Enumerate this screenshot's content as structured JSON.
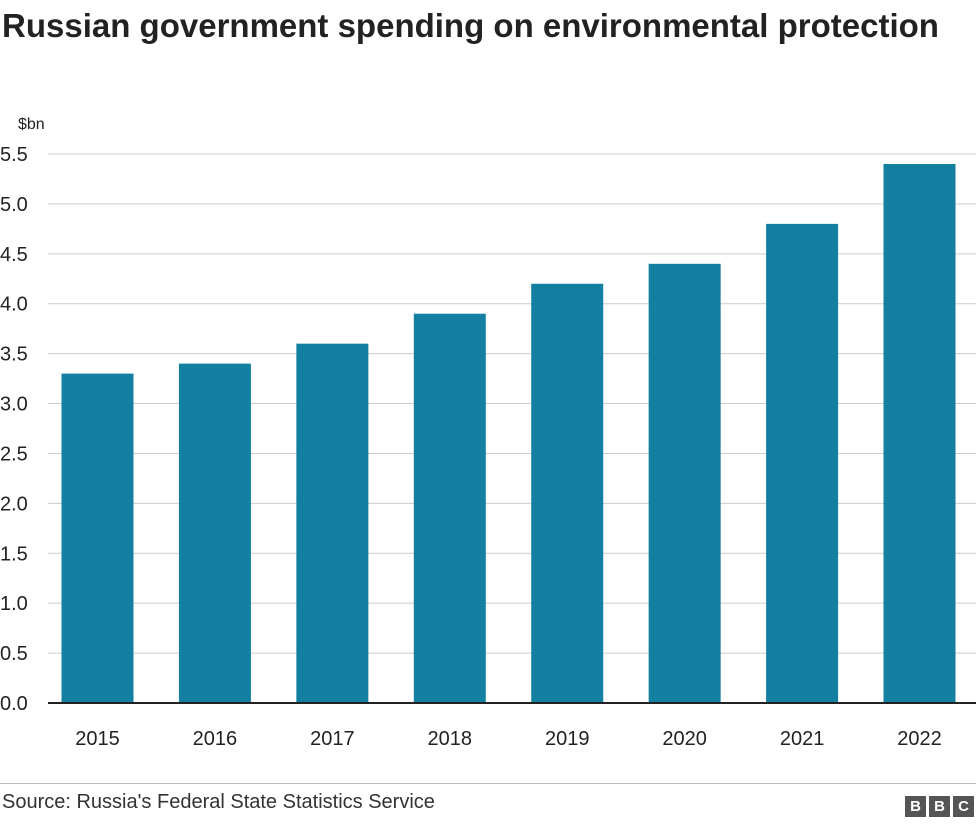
{
  "title": "Russian government spending on environmental protection",
  "source": "Source: Russia's Federal State Statistics Service",
  "logo": [
    "B",
    "B",
    "C"
  ],
  "colors": {
    "bar": "#1380a1",
    "grid": "#cccccc",
    "axis": "#222222",
    "text": "#222222"
  },
  "chart_data": {
    "type": "bar",
    "title": "Russian government spending on environmental protection",
    "unit_label": "$bn",
    "xlabel": "",
    "ylabel": "$bn",
    "categories": [
      "2015",
      "2016",
      "2017",
      "2018",
      "2019",
      "2020",
      "2021",
      "2022"
    ],
    "values": [
      3.3,
      3.4,
      3.6,
      3.9,
      4.2,
      4.4,
      4.8,
      5.4
    ],
    "ylim": [
      0,
      5.5
    ],
    "yticks": [
      0.0,
      0.5,
      1.0,
      1.5,
      2.0,
      2.5,
      3.0,
      3.5,
      4.0,
      4.5,
      5.0,
      5.5
    ],
    "ytick_labels": [
      "0.0",
      "0.5",
      "1.0",
      "1.5",
      "2.0",
      "2.5",
      "3.0",
      "3.5",
      "4.0",
      "4.5",
      "5.0",
      "5.5"
    ],
    "grid": true,
    "legend": "none"
  }
}
